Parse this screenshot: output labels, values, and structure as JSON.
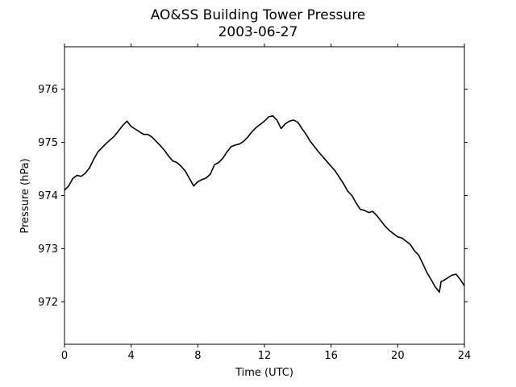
{
  "chart_data": {
    "type": "line",
    "title": "AO&SS Building Tower Pressure",
    "subtitle": "2003-06-27",
    "xlabel": "Time (UTC)",
    "ylabel": "Pressure (hPa)",
    "xlim": [
      0,
      24
    ],
    "ylim": [
      971.2,
      976.8
    ],
    "xticks": [
      0,
      4,
      8,
      12,
      16,
      20,
      24
    ],
    "yticks": [
      972,
      973,
      974,
      975,
      976
    ],
    "grid": false,
    "series": [
      {
        "color": "#000000",
        "x": [
          0,
          0.25,
          0.5,
          0.75,
          1.0,
          1.25,
          1.5,
          1.75,
          2.0,
          2.25,
          2.5,
          2.75,
          3.0,
          3.25,
          3.5,
          3.75,
          4.0,
          4.25,
          4.5,
          4.75,
          5.0,
          5.25,
          5.5,
          5.75,
          6.0,
          6.25,
          6.5,
          6.75,
          7.0,
          7.25,
          7.5,
          7.75,
          8.0,
          8.25,
          8.5,
          8.75,
          9.0,
          9.25,
          9.5,
          9.75,
          10.0,
          10.25,
          10.5,
          10.75,
          11.0,
          11.25,
          11.5,
          11.75,
          12.0,
          12.25,
          12.5,
          12.75,
          13.0,
          13.25,
          13.5,
          13.75,
          14.0,
          14.25,
          14.5,
          14.75,
          15.0,
          15.25,
          15.5,
          15.75,
          16.0,
          16.25,
          16.5,
          16.75,
          17.0,
          17.25,
          17.5,
          17.75,
          18.0,
          18.25,
          18.5,
          18.75,
          19.0,
          19.25,
          19.5,
          19.75,
          20.0,
          20.25,
          20.5,
          20.75,
          21.0,
          21.25,
          21.5,
          21.75,
          22.0,
          22.25,
          22.5,
          22.6,
          22.75,
          23.0,
          23.25,
          23.5,
          23.75,
          24.0
        ],
        "y": [
          974.1,
          974.18,
          974.32,
          974.38,
          974.36,
          974.42,
          974.52,
          974.68,
          974.82,
          974.9,
          974.98,
          975.05,
          975.12,
          975.22,
          975.32,
          975.4,
          975.3,
          975.25,
          975.2,
          975.15,
          975.15,
          975.1,
          975.02,
          974.94,
          974.85,
          974.74,
          974.65,
          974.62,
          974.55,
          974.46,
          974.32,
          974.18,
          974.26,
          974.3,
          974.33,
          974.4,
          974.58,
          974.62,
          974.7,
          974.82,
          974.92,
          974.95,
          974.97,
          975.02,
          975.1,
          975.2,
          975.28,
          975.34,
          975.4,
          975.48,
          975.5,
          975.42,
          975.26,
          975.35,
          975.4,
          975.42,
          975.38,
          975.26,
          975.15,
          975.02,
          974.92,
          974.82,
          974.73,
          974.64,
          974.55,
          974.46,
          974.34,
          974.22,
          974.08,
          974.0,
          973.86,
          973.74,
          973.72,
          973.68,
          973.7,
          973.62,
          973.52,
          973.42,
          973.34,
          973.28,
          973.22,
          973.2,
          973.14,
          973.08,
          972.96,
          972.88,
          972.72,
          972.55,
          972.42,
          972.28,
          972.18,
          972.38,
          972.4,
          972.45,
          972.5,
          972.52,
          972.42,
          972.3
        ]
      }
    ]
  }
}
